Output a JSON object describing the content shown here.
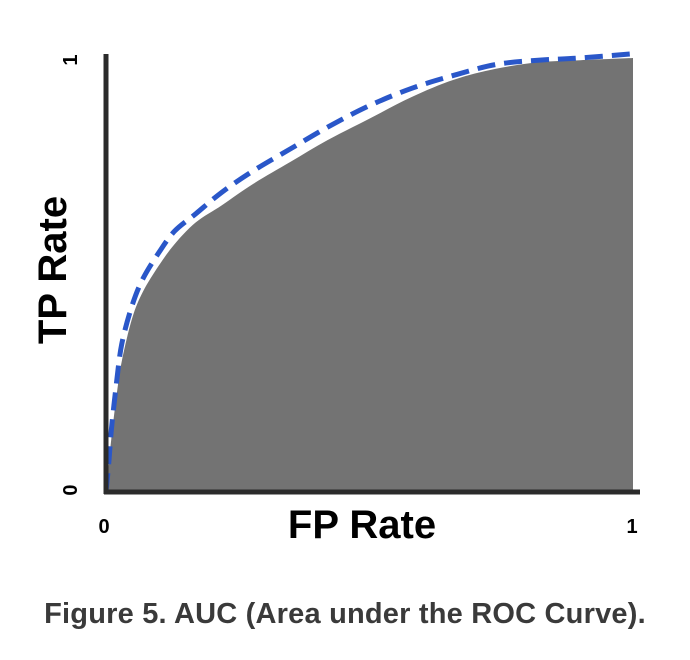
{
  "caption": "Figure 5. AUC (Area under the ROC Curve).",
  "chart_data": {
    "type": "area",
    "title": "",
    "xlabel": "FP Rate",
    "ylabel": "TP Rate",
    "xlim": [
      0,
      1
    ],
    "ylim": [
      0,
      1
    ],
    "x_ticks": [
      "0",
      "1"
    ],
    "y_ticks": [
      "0",
      "1"
    ],
    "grid": false,
    "legend": "none",
    "series": [
      {
        "style": "filled-area",
        "color": "#737373",
        "x": [
          0,
          0.005,
          0.01,
          0.02,
          0.03,
          0.05,
          0.07,
          0.1,
          0.13,
          0.17,
          0.22,
          0.28,
          0.35,
          0.42,
          0.5,
          0.58,
          0.66,
          0.74,
          0.82,
          0.9,
          1.0
        ],
        "y": [
          0,
          0.06,
          0.12,
          0.22,
          0.3,
          0.4,
          0.46,
          0.52,
          0.57,
          0.62,
          0.66,
          0.71,
          0.76,
          0.81,
          0.86,
          0.91,
          0.95,
          0.975,
          0.99,
          0.995,
          1.0
        ]
      },
      {
        "style": "dashed-line",
        "color": "#2a57c9",
        "x": [
          0,
          0.005,
          0.01,
          0.02,
          0.03,
          0.05,
          0.07,
          0.1,
          0.13,
          0.17,
          0.22,
          0.28,
          0.35,
          0.42,
          0.5,
          0.58,
          0.66,
          0.74,
          0.82,
          0.9,
          1.0
        ],
        "y": [
          0,
          0.06,
          0.14,
          0.25,
          0.34,
          0.43,
          0.49,
          0.55,
          0.6,
          0.64,
          0.69,
          0.74,
          0.79,
          0.84,
          0.89,
          0.93,
          0.96,
          0.985,
          0.995,
          1.0,
          1.01
        ]
      }
    ],
    "colors": {
      "axis": "#2b2b2b",
      "fill": "#737373",
      "dashed": "#2a57c9",
      "caption": "#3a3a3a"
    }
  }
}
